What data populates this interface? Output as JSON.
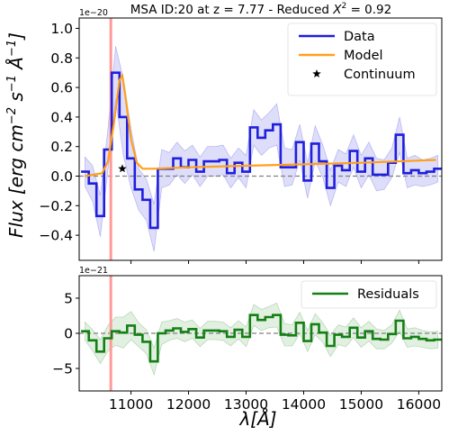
{
  "chart_data": [
    {
      "type": "line",
      "panel": "top",
      "title": "MSA ID:20 at z = 7.77 - Reduced X² = 0.92",
      "title_parts": {
        "main": "MSA ID:20 at z = 7.77 - Reduced ",
        "symbol": "X",
        "sup": "2",
        "tail": " = 0.92"
      },
      "ylabel": "Flux [erg cm⁻² s⁻¹ Å⁻¹]",
      "ylabel_parts": {
        "main": "Flux [erg cm",
        "e1": "−2",
        "s": " s",
        "e2": "−1",
        "a": " Å",
        "e3": "−1",
        "close": "]"
      },
      "y_offset_label": "1e−20",
      "xlim": [
        10100,
        16400
      ],
      "ylim": [
        -0.57,
        1.07
      ],
      "yticks": [
        -0.4,
        -0.2,
        0.0,
        0.2,
        0.4,
        0.6,
        0.8,
        1.0
      ],
      "ytick_labels": [
        "−0.4",
        "−0.2",
        "0.0",
        "0.2",
        "0.4",
        "0.6",
        "0.8",
        "1.0"
      ],
      "reference_line_y": 0.0,
      "vertical_line_x": 10650,
      "legend_position": "upper right",
      "series": [
        {
          "name": "Data",
          "style": "steps-mid",
          "color": "#1f1fdc",
          "x": [
            10200,
            10333,
            10467,
            10600,
            10733,
            10867,
            11000,
            11133,
            11267,
            11400,
            11533,
            11667,
            11800,
            11933,
            12067,
            12200,
            12333,
            12467,
            12600,
            12733,
            12867,
            13000,
            13133,
            13267,
            13400,
            13533,
            13667,
            13800,
            13933,
            14067,
            14200,
            14333,
            14467,
            14600,
            14733,
            14867,
            15000,
            15133,
            15267,
            15400,
            15533,
            15667,
            15800,
            15933,
            16067,
            16200,
            16333
          ],
          "y": [
            0.03,
            -0.05,
            -0.27,
            0.18,
            0.7,
            0.4,
            0.12,
            -0.09,
            -0.16,
            -0.35,
            0.05,
            0.05,
            0.12,
            0.06,
            0.11,
            0.03,
            0.1,
            0.1,
            0.11,
            0.02,
            0.09,
            0.03,
            0.33,
            0.26,
            0.31,
            0.35,
            0.06,
            0.06,
            0.23,
            -0.03,
            0.22,
            0.1,
            -0.08,
            0.07,
            0.04,
            0.17,
            0.03,
            0.12,
            0.01,
            0.01,
            0.09,
            0.28,
            0.02,
            0.04,
            0.02,
            0.03,
            0.05
          ],
          "error_band": [
            0.1,
            0.12,
            0.14,
            0.14,
            0.18,
            0.26,
            0.2,
            0.14,
            0.14,
            0.16,
            0.13,
            0.11,
            0.11,
            0.11,
            0.1,
            0.1,
            0.1,
            0.1,
            0.1,
            0.1,
            0.1,
            0.11,
            0.12,
            0.12,
            0.12,
            0.14,
            0.13,
            0.12,
            0.12,
            0.12,
            0.12,
            0.11,
            0.12,
            0.11,
            0.11,
            0.11,
            0.11,
            0.11,
            0.11,
            0.1,
            0.1,
            0.12,
            0.1,
            0.1,
            0.09,
            0.09,
            0.09
          ]
        },
        {
          "name": "Model",
          "style": "line",
          "color": "#ffa01c",
          "x": [
            10200,
            10500,
            10600,
            10700,
            10800,
            10850,
            10900,
            11000,
            11100,
            11200,
            11400,
            12000,
            13000,
            14000,
            15000,
            16300
          ],
          "y": [
            0.0,
            0.02,
            0.1,
            0.35,
            0.65,
            0.68,
            0.55,
            0.25,
            0.09,
            0.05,
            0.05,
            0.06,
            0.07,
            0.08,
            0.09,
            0.11
          ]
        },
        {
          "name": "Continuum",
          "style": "marker",
          "marker": "star",
          "color": "#000000",
          "x": [
            10850
          ],
          "y": [
            0.05
          ]
        }
      ]
    },
    {
      "type": "line",
      "panel": "bottom",
      "xlabel": "λ[Å]",
      "y_offset_label": "1e−21",
      "xlim": [
        10100,
        16400
      ],
      "ylim": [
        -8.2,
        8.2
      ],
      "yticks": [
        -5,
        0,
        5
      ],
      "ytick_labels": [
        "−5",
        "0",
        "5"
      ],
      "xticks": [
        11000,
        12000,
        13000,
        14000,
        15000,
        16000
      ],
      "xtick_labels": [
        "11000",
        "12000",
        "13000",
        "14000",
        "15000",
        "16000"
      ],
      "reference_line_y": 0.0,
      "vertical_line_x": 10650,
      "legend_position": "upper right",
      "series": [
        {
          "name": "Residuals",
          "style": "steps-mid",
          "color": "#148014",
          "x": [
            10200,
            10333,
            10467,
            10600,
            10733,
            10867,
            11000,
            11133,
            11267,
            11400,
            11533,
            11667,
            11800,
            11933,
            12067,
            12200,
            12333,
            12467,
            12600,
            12733,
            12867,
            13000,
            13133,
            13267,
            13400,
            13533,
            13667,
            13800,
            13933,
            14067,
            14200,
            14333,
            14467,
            14600,
            14733,
            14867,
            15000,
            15133,
            15267,
            15400,
            15533,
            15667,
            15800,
            15933,
            16067,
            16200,
            16333
          ],
          "y": [
            0.3,
            -1.0,
            -2.6,
            -0.7,
            0.3,
            0.1,
            1.1,
            -0.2,
            -1.2,
            -4.0,
            0.0,
            0.4,
            0.7,
            0.2,
            0.6,
            -0.6,
            0.4,
            0.4,
            0.3,
            -0.5,
            0.5,
            -0.5,
            2.6,
            1.9,
            2.3,
            2.6,
            -0.2,
            -0.3,
            1.5,
            -1.1,
            1.3,
            0.1,
            -1.8,
            -0.2,
            -0.5,
            0.8,
            -0.6,
            0.3,
            -0.8,
            -0.9,
            -0.1,
            1.8,
            -0.7,
            -0.5,
            -0.8,
            -1.0,
            -0.9
          ],
          "error_band": [
            1.3,
            1.5,
            1.7,
            1.8,
            2.0,
            2.2,
            2.0,
            1.7,
            1.7,
            1.9,
            1.6,
            1.4,
            1.4,
            1.4,
            1.3,
            1.3,
            1.3,
            1.3,
            1.3,
            1.3,
            1.3,
            1.4,
            1.5,
            1.5,
            1.5,
            1.7,
            1.6,
            1.5,
            1.5,
            1.5,
            1.5,
            1.4,
            1.5,
            1.4,
            1.4,
            1.4,
            1.4,
            1.4,
            1.4,
            1.3,
            1.3,
            1.5,
            1.3,
            1.3,
            1.2,
            1.2,
            1.2
          ]
        }
      ]
    }
  ],
  "colors": {
    "data_band": "#1f1fdc",
    "residual_band": "#148014",
    "zero_line": "#808080",
    "vertical_marker": "#ff9a9a",
    "frame": "#000000"
  }
}
